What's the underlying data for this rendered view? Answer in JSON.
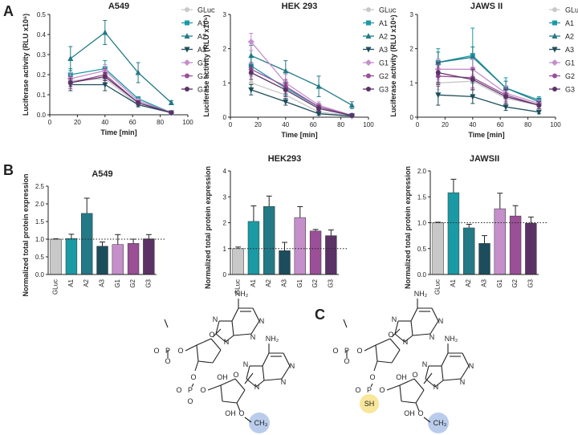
{
  "panel_letters": [
    "A",
    "B",
    "C"
  ],
  "palette": {
    "GLuc": "#c8c8c8",
    "A1": "#1a9aa5",
    "A2": "#237a86",
    "A3": "#1d4d5c",
    "G1": "#c58fcb",
    "G2": "#9a4f97",
    "G3": "#5b3266"
  },
  "markers": {
    "GLuc": "circle",
    "A1": "square",
    "A2": "triangle-up",
    "A3": "triangle-down",
    "G1": "diamond",
    "G2": "circle",
    "G3": "circle"
  },
  "chart_data": [
    {
      "type": "line",
      "title": "A549",
      "xlabel": "Time [min]",
      "ylabel": "Luciferase activity (RLU x10⁶)",
      "xlim": [
        0,
        100
      ],
      "ylim": [
        0,
        0.5
      ],
      "xticks": [
        0,
        20,
        40,
        60,
        80,
        100
      ],
      "yticks": [
        0.0,
        0.1,
        0.2,
        0.3,
        0.4,
        0.5
      ],
      "ytick_labels": [
        "0.0",
        "0.1",
        "0.2",
        "0.3",
        "0.4",
        "0.5"
      ],
      "x": [
        15,
        40,
        64,
        88
      ],
      "legend": "right",
      "series": [
        {
          "name": "GLuc",
          "values": [
            0.17,
            0.18,
            0.05,
            0.01
          ],
          "err": [
            0.02,
            0.02,
            0.01,
            0.005
          ]
        },
        {
          "name": "A1",
          "values": [
            0.2,
            0.23,
            0.08,
            0.01
          ],
          "err": [
            0.03,
            0.04,
            0.01,
            0.005
          ]
        },
        {
          "name": "A2",
          "values": [
            0.28,
            0.41,
            0.21,
            0.06
          ],
          "err": [
            0.06,
            0.06,
            0.05,
            0.01
          ]
        },
        {
          "name": "A3",
          "values": [
            0.15,
            0.15,
            0.05,
            0.01
          ],
          "err": [
            0.03,
            0.03,
            0.01,
            0.005
          ]
        },
        {
          "name": "G1",
          "values": [
            0.18,
            0.22,
            0.07,
            0.01
          ],
          "err": [
            0.03,
            0.03,
            0.01,
            0.005
          ]
        },
        {
          "name": "G2",
          "values": [
            0.16,
            0.2,
            0.06,
            0.01
          ],
          "err": [
            0.03,
            0.03,
            0.01,
            0.005
          ]
        },
        {
          "name": "G3",
          "values": [
            0.16,
            0.19,
            0.06,
            0.01
          ],
          "err": [
            0.02,
            0.02,
            0.01,
            0.005
          ]
        }
      ]
    },
    {
      "type": "line",
      "title": "HEK 293",
      "xlabel": "Time [min]",
      "ylabel": "Luciferase activity (RLU x10⁶)",
      "xlim": [
        0,
        100
      ],
      "ylim": [
        0,
        3
      ],
      "xticks": [
        0,
        20,
        40,
        60,
        80,
        100
      ],
      "yticks": [
        0,
        1,
        2,
        3
      ],
      "ytick_labels": [
        "0",
        "1",
        "2",
        "3"
      ],
      "x": [
        15,
        40,
        64,
        88
      ],
      "legend": "right",
      "series": [
        {
          "name": "GLuc",
          "values": [
            1.0,
            0.65,
            0.15,
            0.05
          ],
          "err": [
            0.15,
            0.1,
            0.05,
            0.02
          ]
        },
        {
          "name": "A1",
          "values": [
            1.5,
            0.85,
            0.3,
            0.05
          ],
          "err": [
            0.25,
            0.2,
            0.1,
            0.02
          ]
        },
        {
          "name": "A2",
          "values": [
            1.8,
            1.35,
            0.9,
            0.35
          ],
          "err": [
            0.3,
            0.3,
            0.3,
            0.1
          ]
        },
        {
          "name": "A3",
          "values": [
            0.8,
            0.45,
            0.1,
            0.03
          ],
          "err": [
            0.15,
            0.1,
            0.04,
            0.02
          ]
        },
        {
          "name": "G1",
          "values": [
            2.2,
            1.0,
            0.35,
            0.05
          ],
          "err": [
            0.25,
            0.25,
            0.1,
            0.02
          ]
        },
        {
          "name": "G2",
          "values": [
            1.4,
            0.9,
            0.3,
            0.05
          ],
          "err": [
            0.2,
            0.2,
            0.08,
            0.02
          ]
        },
        {
          "name": "G3",
          "values": [
            1.3,
            0.8,
            0.25,
            0.05
          ],
          "err": [
            0.2,
            0.2,
            0.08,
            0.02
          ]
        }
      ]
    },
    {
      "type": "line",
      "title": "JAWS II",
      "xlabel": "Time [min]",
      "ylabel": "Luciferase activity (RLU x10⁶)",
      "xlim": [
        0,
        100
      ],
      "ylim": [
        0,
        3
      ],
      "xticks": [
        0,
        20,
        40,
        60,
        80,
        100
      ],
      "yticks": [
        0,
        1,
        2,
        3
      ],
      "ytick_labels": [
        "0",
        "1",
        "2",
        "3"
      ],
      "x": [
        15,
        40,
        64,
        88
      ],
      "legend": "right",
      "series": [
        {
          "name": "GLuc",
          "values": [
            1.0,
            1.05,
            0.55,
            0.35
          ],
          "err": [
            0.2,
            0.2,
            0.15,
            0.1
          ]
        },
        {
          "name": "A1",
          "values": [
            1.6,
            1.8,
            0.85,
            0.5
          ],
          "err": [
            0.4,
            0.8,
            0.3,
            0.1
          ]
        },
        {
          "name": "A2",
          "values": [
            1.6,
            1.75,
            0.85,
            0.45
          ],
          "err": [
            0.3,
            0.3,
            0.2,
            0.1
          ]
        },
        {
          "name": "A3",
          "values": [
            0.65,
            0.6,
            0.3,
            0.15
          ],
          "err": [
            0.3,
            0.2,
            0.1,
            0.05
          ]
        },
        {
          "name": "G1",
          "values": [
            1.4,
            1.4,
            0.7,
            0.4
          ],
          "err": [
            0.3,
            0.3,
            0.2,
            0.1
          ]
        },
        {
          "name": "G2",
          "values": [
            1.2,
            1.15,
            0.65,
            0.35
          ],
          "err": [
            0.3,
            0.3,
            0.2,
            0.1
          ]
        },
        {
          "name": "G3",
          "values": [
            1.3,
            1.1,
            0.6,
            0.35
          ],
          "err": [
            0.3,
            0.3,
            0.2,
            0.1
          ]
        }
      ]
    },
    {
      "type": "bar",
      "title": "A549",
      "ylabel": "Normalized total protein expression",
      "categories": [
        "GLuc",
        "A1",
        "A2",
        "A3",
        "G1",
        "G2",
        "G3"
      ],
      "values": [
        1.0,
        1.02,
        1.73,
        0.8,
        0.85,
        0.88,
        1.01
      ],
      "err": [
        0.01,
        0.12,
        0.43,
        0.12,
        0.28,
        0.12,
        0.12
      ],
      "ylim": [
        0,
        2.5
      ],
      "yticks": [
        0.0,
        0.5,
        1.0,
        1.5,
        2.0,
        2.5
      ],
      "ytick_labels": [
        "0.0",
        "0.5",
        "1.0",
        "1.5",
        "2.0",
        "2.5"
      ],
      "reference_line": 1.0
    },
    {
      "type": "bar",
      "title": "HEK293",
      "ylabel": "Normalized total protein expression",
      "categories": [
        "GLuc",
        "A1",
        "A2",
        "A3",
        "G1",
        "G2",
        "G3"
      ],
      "values": [
        1.0,
        2.05,
        2.63,
        0.92,
        2.2,
        1.68,
        1.5
      ],
      "err": [
        0.06,
        0.6,
        0.4,
        0.32,
        0.42,
        0.06,
        0.22
      ],
      "ylim": [
        0,
        4
      ],
      "yticks": [
        0,
        1,
        2,
        3,
        4
      ],
      "ytick_labels": [
        "0",
        "1",
        "2",
        "3",
        "4"
      ],
      "reference_line": 1.0
    },
    {
      "type": "bar",
      "title": "JAWSII",
      "ylabel": "Normalized total protein expression",
      "categories": [
        "GLuc",
        "A1",
        "A2",
        "A3",
        "G1",
        "G2",
        "G3"
      ],
      "values": [
        1.0,
        1.58,
        0.9,
        0.6,
        1.27,
        1.13,
        0.99
      ],
      "err": [
        0.01,
        0.26,
        0.07,
        0.15,
        0.3,
        0.2,
        0.12
      ],
      "ylim": [
        0,
        2.0
      ],
      "yticks": [
        0.0,
        0.5,
        1.0,
        1.5,
        2.0
      ],
      "ytick_labels": [
        "0.0",
        "0.5",
        "1.0",
        "1.5",
        "2.0"
      ],
      "reference_line": 1.0
    }
  ],
  "chem": {
    "labels": [
      "NH₂",
      "N",
      "O",
      "P",
      "OH",
      "CH₃",
      "SH"
    ]
  }
}
